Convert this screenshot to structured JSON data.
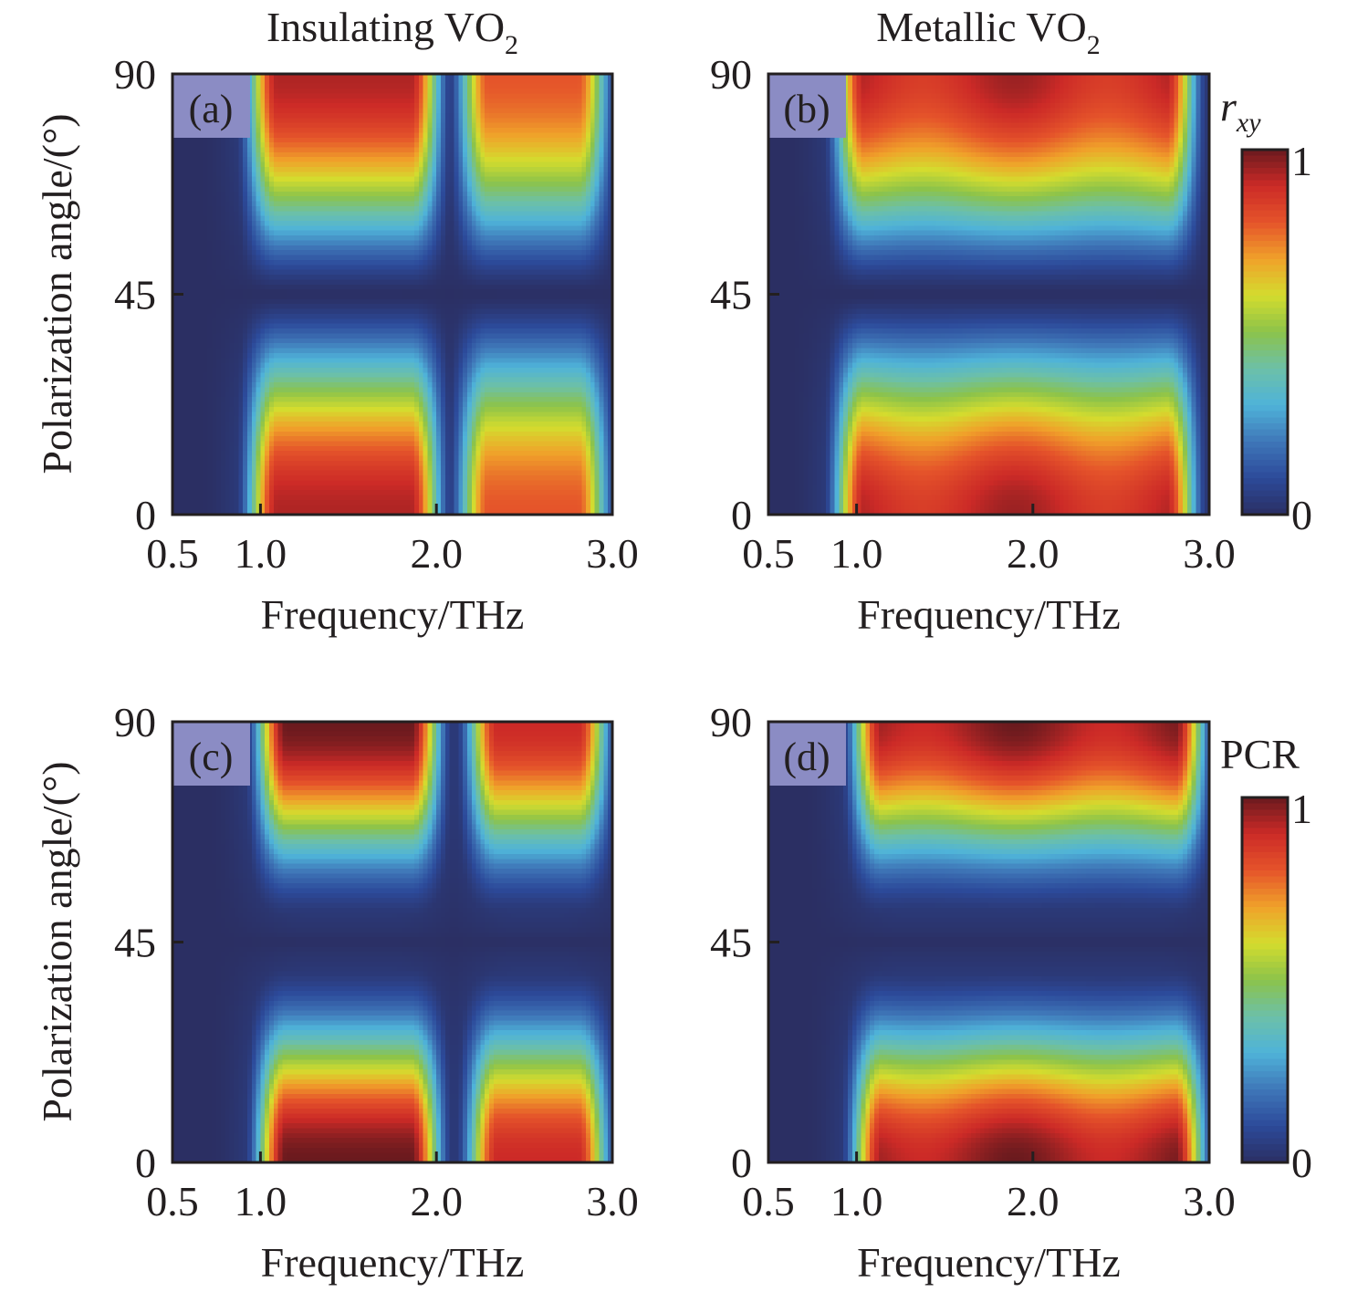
{
  "figure": {
    "column_titles": [
      {
        "text": "Insulating VO",
        "subscript": "2"
      },
      {
        "text": "Metallic VO",
        "subscript": "2"
      }
    ],
    "row_ylabel": "Polarization angle/(°)",
    "xlabel": "Frequency/THz"
  },
  "colormap": {
    "name": "jet",
    "stops": [
      "#2b2f63",
      "#2c4a9a",
      "#3f77b8",
      "#4fb3d9",
      "#6cc0a8",
      "#8cc34a",
      "#d4dc2e",
      "#f0a12a",
      "#e5542a",
      "#cc2a27",
      "#6a1a1e"
    ]
  },
  "chart_data": [
    {
      "type": "heatmap",
      "panel_label": "(a)",
      "column_title": "Insulating VO2",
      "quantity": "r_xy",
      "xlabel": "Frequency/THz",
      "ylabel": "Polarization angle/(°)",
      "xlim": [
        0.5,
        3.0
      ],
      "ylim": [
        0,
        90
      ],
      "xticks": [
        0.5,
        1.0,
        2.0,
        3.0
      ],
      "xtick_labels": [
        "0.5",
        "1.0",
        "2.0",
        "3.0"
      ],
      "yticks": [
        0,
        45,
        90
      ],
      "ytick_labels": [
        "0",
        "45",
        "90"
      ],
      "clim": [
        0,
        1
      ],
      "features": {
        "bands": [
          {
            "f_low": 1.0,
            "f_high": 1.95,
            "peak": 0.93
          },
          {
            "f_low": 2.2,
            "f_high": 2.9,
            "peak": 0.8
          }
        ],
        "minimum_at_angle": 45,
        "maxima_at_angles": [
          0,
          90
        ],
        "dip_frequency": 2.1
      }
    },
    {
      "type": "heatmap",
      "panel_label": "(b)",
      "column_title": "Metallic VO2",
      "quantity": "r_xy",
      "xlabel": "Frequency/THz",
      "ylabel": "Polarization angle/(°)",
      "xlim": [
        0.5,
        3.0
      ],
      "ylim": [
        0,
        90
      ],
      "xticks": [
        0.5,
        1.0,
        2.0,
        3.0
      ],
      "xtick_labels": [
        "0.5",
        "1.0",
        "2.0",
        "3.0"
      ],
      "yticks": [
        0,
        45,
        90
      ],
      "ytick_labels": [
        "0",
        "45",
        "90"
      ],
      "clim": [
        0,
        1
      ],
      "colorbar": {
        "label": "r",
        "label_subscript": "xy",
        "ticks": [
          "0",
          "1"
        ]
      },
      "features": {
        "bands": [
          {
            "f_low": 0.95,
            "f_high": 2.85,
            "peak": 0.95
          }
        ],
        "minimum_at_angle": 45,
        "maxima_at_angles": [
          0,
          90
        ]
      }
    },
    {
      "type": "heatmap",
      "panel_label": "(c)",
      "column_title": "Insulating VO2",
      "quantity": "PCR",
      "xlabel": "Frequency/THz",
      "ylabel": "Polarization angle/(°)",
      "xlim": [
        0.5,
        3.0
      ],
      "ylim": [
        0,
        90
      ],
      "xticks": [
        0.5,
        1.0,
        2.0,
        3.0
      ],
      "xtick_labels": [
        "0.5",
        "1.0",
        "2.0",
        "3.0"
      ],
      "yticks": [
        0,
        45,
        90
      ],
      "ytick_labels": [
        "0",
        "45",
        "90"
      ],
      "clim": [
        0,
        1
      ],
      "features": {
        "bands": [
          {
            "f_low": 1.05,
            "f_high": 1.95,
            "peak": 1.0
          },
          {
            "f_low": 2.25,
            "f_high": 2.9,
            "peak": 0.9
          }
        ],
        "minimum_at_angle": 45,
        "maxima_at_angles": [
          0,
          90
        ],
        "dip_frequency": 2.1
      }
    },
    {
      "type": "heatmap",
      "panel_label": "(d)",
      "column_title": "Metallic VO2",
      "quantity": "PCR",
      "xlabel": "Frequency/THz",
      "ylabel": "Polarization angle/(°)",
      "xlim": [
        0.5,
        3.0
      ],
      "ylim": [
        0,
        90
      ],
      "xticks": [
        0.5,
        1.0,
        2.0,
        3.0
      ],
      "xtick_labels": [
        "0.5",
        "1.0",
        "2.0",
        "3.0"
      ],
      "yticks": [
        0,
        45,
        90
      ],
      "ytick_labels": [
        "0",
        "45",
        "90"
      ],
      "clim": [
        0,
        1
      ],
      "colorbar": {
        "label": "PCR",
        "label_subscript": "",
        "ticks": [
          "0",
          "1"
        ]
      },
      "features": {
        "bands": [
          {
            "f_low": 1.05,
            "f_high": 2.9,
            "peak": 1.0
          }
        ],
        "minimum_at_angle": 45,
        "maxima_at_angles": [
          0,
          90
        ]
      }
    }
  ]
}
